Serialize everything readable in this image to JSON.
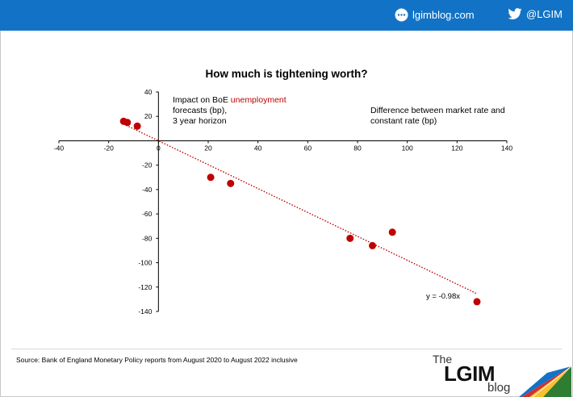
{
  "header": {
    "site_label": "lgimblog.com",
    "twitter_label": "@LGIM",
    "bar_color": "#1273c6"
  },
  "annotation_left": {
    "prefix": "Impact on BoE ",
    "highlight": "unemployment",
    "line2": "forecasts (bp),",
    "line3": "3 year horizon"
  },
  "annotation_right": {
    "line1": "Difference between market rate and",
    "line2": "constant rate (bp)"
  },
  "footer": {
    "source": "Source: Bank of England Monetary Policy reports from August 2020 to August 2022 inclusive"
  },
  "logo": {
    "the": "The",
    "lgim": "LGIM",
    "blog": "blog"
  },
  "chart_data": {
    "type": "scatter",
    "title": "How much is tightening worth?",
    "xlabel": "Difference between market rate and constant rate (bp)",
    "ylabel": "Impact on BoE unemployment forecasts (bp), 3 year horizon",
    "xlim": [
      -40,
      140
    ],
    "ylim": [
      -140,
      40
    ],
    "x_ticks": [
      -40,
      -20,
      0,
      20,
      40,
      60,
      80,
      100,
      120,
      140
    ],
    "y_ticks": [
      40,
      20,
      -20,
      -40,
      -60,
      -80,
      -100,
      -120,
      -140
    ],
    "grid": false,
    "point_color": "#c00000",
    "points": [
      {
        "x": -14,
        "y": 16
      },
      {
        "x": -12.5,
        "y": 15
      },
      {
        "x": -8.5,
        "y": 12
      },
      {
        "x": 21,
        "y": -30
      },
      {
        "x": 29,
        "y": -35
      },
      {
        "x": 77,
        "y": -80
      },
      {
        "x": 86,
        "y": -86
      },
      {
        "x": 94,
        "y": -75
      },
      {
        "x": 128,
        "y": -132
      }
    ],
    "trendline": {
      "slope": -0.98,
      "intercept": 0,
      "x_range": [
        -14,
        128
      ],
      "label": "y = -0.98x"
    }
  }
}
